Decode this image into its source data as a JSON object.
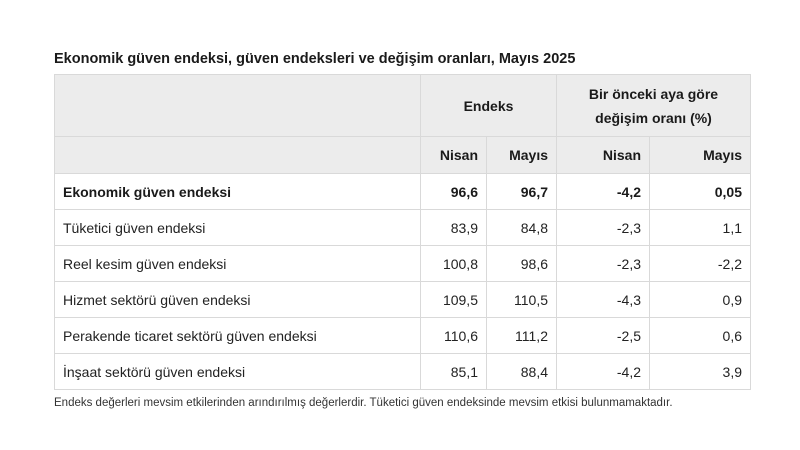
{
  "title": "Ekonomik güven endeksi, güven endeksleri ve değişim oranları, Mayıs 2025",
  "header": {
    "group_index": "Endeks",
    "group_change": "Bir önceki aya göre değişim oranı (%)",
    "index_prev": "Nisan",
    "index_curr": "Mayıs",
    "change_prev": "Nisan",
    "change_curr": "Mayıs"
  },
  "rows": [
    {
      "label": "Ekonomik güven endeksi",
      "idx_nisan": "96,6",
      "idx_mayis": "96,7",
      "chg_nisan": "-4,2",
      "chg_mayis": "0,05"
    },
    {
      "label": "Tüketici güven endeksi",
      "idx_nisan": "83,9",
      "idx_mayis": "84,8",
      "chg_nisan": "-2,3",
      "chg_mayis": "1,1"
    },
    {
      "label": "Reel kesim güven endeksi",
      "idx_nisan": "100,8",
      "idx_mayis": "98,6",
      "chg_nisan": "-2,3",
      "chg_mayis": "-2,2"
    },
    {
      "label": "Hizmet sektörü güven endeksi",
      "idx_nisan": "109,5",
      "idx_mayis": "110,5",
      "chg_nisan": "-4,3",
      "chg_mayis": "0,9"
    },
    {
      "label": "Perakende ticaret sektörü güven endeksi",
      "idx_nisan": "110,6",
      "idx_mayis": "111,2",
      "chg_nisan": "-2,5",
      "chg_mayis": "0,6"
    },
    {
      "label": "İnşaat sektörü güven endeksi",
      "idx_nisan": "85,1",
      "idx_mayis": "88,4",
      "chg_nisan": "-4,2",
      "chg_mayis": "3,9"
    }
  ],
  "footnote": "Endeks değerleri mevsim etkilerinden arındırılmış değerlerdir. Tüketici güven endeksinde mevsim etkisi bulunmamaktadır."
}
